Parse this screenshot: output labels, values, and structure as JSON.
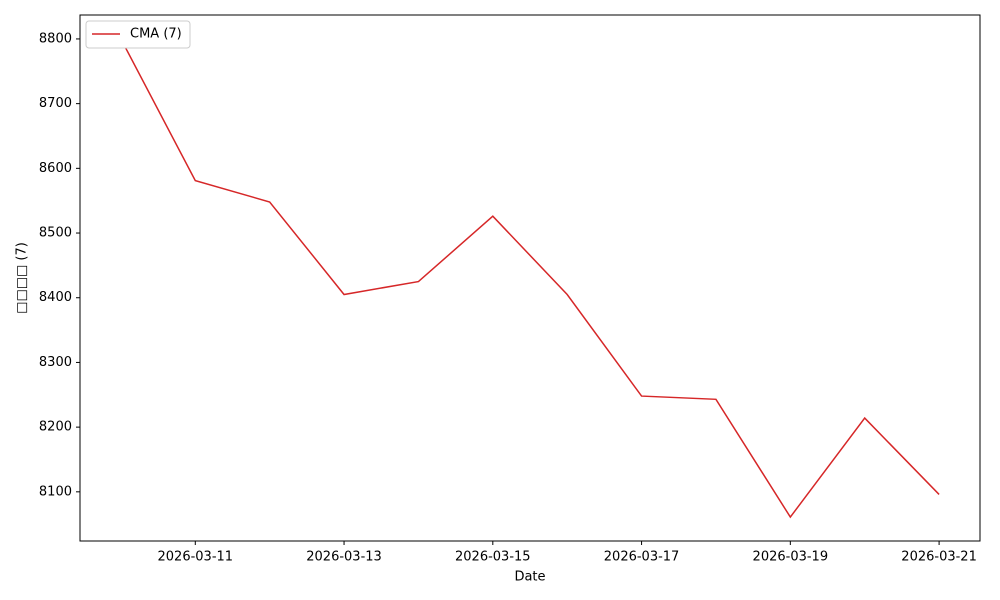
{
  "chart_data": {
    "type": "line",
    "x": [
      "2026-03-10",
      "2026-03-11",
      "2026-03-12",
      "2026-03-13",
      "2026-03-14",
      "2026-03-15",
      "2026-03-16",
      "2026-03-17",
      "2026-03-18",
      "2026-03-19",
      "2026-03-20",
      "2026-03-21"
    ],
    "series": [
      {
        "name": "CMA (7)",
        "color": "#d62728",
        "values": [
          8800,
          8581,
          8548,
          8405,
          8425,
          8526,
          8405,
          8248,
          8243,
          8061,
          8214,
          8096
        ]
      }
    ],
    "xlabel": "Date",
    "ylabel": "□□□□ (7)",
    "ylim": [
      8024,
      8837
    ],
    "yticks": [
      8100,
      8200,
      8300,
      8400,
      8500,
      8600,
      8700,
      8800
    ],
    "xticks": [
      "2026-03-11",
      "2026-03-13",
      "2026-03-15",
      "2026-03-17",
      "2026-03-19",
      "2026-03-21"
    ],
    "legend": "upper left",
    "grid": false
  }
}
